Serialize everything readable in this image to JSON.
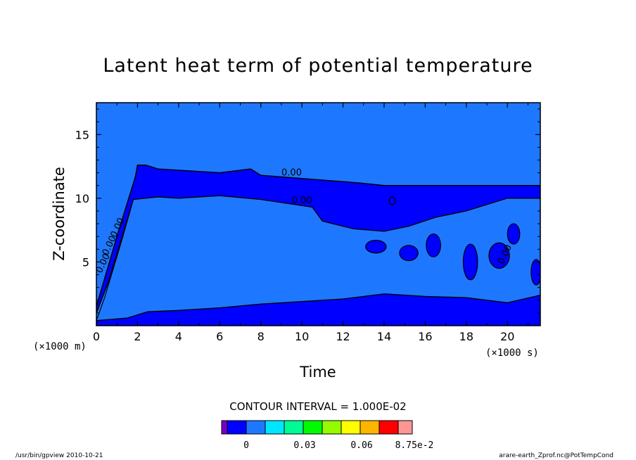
{
  "chart_data": {
    "type": "heatmap",
    "title": "Latent heat term of potential temperature",
    "xlabel": "Time",
    "ylabel": "Z-coordinate",
    "x_unit": "(×1000 s)",
    "y_unit": "(×1000 m)",
    "xlim": [
      0,
      21.6
    ],
    "ylim": [
      0,
      17.5
    ],
    "x_ticks": [
      "0",
      "2",
      "4",
      "6",
      "8",
      "10",
      "12",
      "14",
      "16",
      "18",
      "20"
    ],
    "y_ticks": [
      "5",
      "10",
      "15"
    ],
    "contour_labels": [
      "0.00",
      "0.00",
      "0.00",
      "0.00",
      "0.00",
      "0.00"
    ],
    "contour_interval_text": "CONTOUR INTERVAL = 1.000E-02",
    "colorbar": {
      "colors": [
        "#7a00c8",
        "#0000ff",
        "#1e78ff",
        "#00e6ff",
        "#00fa96",
        "#00fa00",
        "#96fa00",
        "#ffff00",
        "#ffb400",
        "#ff0000",
        "#ff9696"
      ],
      "labels": [
        "0",
        "0.03",
        "0.06",
        "8.75e-2"
      ]
    },
    "colors": {
      "background_field": "#1e78ff",
      "cloud_region": "#0000ff"
    },
    "surface_layer_top": [
      [
        0,
        0.4
      ],
      [
        1.5,
        0.6
      ],
      [
        2.5,
        1.1
      ],
      [
        4,
        1.2
      ],
      [
        6,
        1.4
      ],
      [
        8,
        1.7
      ],
      [
        10,
        1.9
      ],
      [
        12,
        2.1
      ],
      [
        14,
        2.5
      ],
      [
        16,
        2.3
      ],
      [
        18,
        2.2
      ],
      [
        20,
        1.8
      ],
      [
        21.6,
        2.4
      ]
    ],
    "cloud_top": [
      [
        0,
        1.5
      ],
      [
        1,
        7
      ],
      [
        1.9,
        11.7
      ],
      [
        2,
        12.6
      ],
      [
        2.4,
        12.6
      ],
      [
        3,
        12.3
      ],
      [
        4,
        12.2
      ],
      [
        6,
        12.0
      ],
      [
        7.5,
        12.3
      ],
      [
        8,
        11.8
      ],
      [
        12,
        11.3
      ],
      [
        12.8,
        11.2
      ],
      [
        14,
        11.0
      ],
      [
        21.6,
        11.0
      ]
    ],
    "cloud_base": [
      [
        1.8,
        9.9
      ],
      [
        3,
        10.1
      ],
      [
        4,
        10.0
      ],
      [
        6,
        10.2
      ],
      [
        8,
        9.9
      ],
      [
        10.5,
        9.3
      ],
      [
        11,
        8.2
      ],
      [
        12.5,
        7.6
      ],
      [
        14,
        7.4
      ],
      [
        15.2,
        7.8
      ],
      [
        16.5,
        8.5
      ],
      [
        18,
        9.0
      ],
      [
        20,
        10.0
      ],
      [
        21.6,
        10.0
      ]
    ]
  },
  "footer": {
    "left": "/usr/bin/gpview   2010-10-21",
    "right": "arare-earth_Zprof.nc@PotTempCond"
  }
}
